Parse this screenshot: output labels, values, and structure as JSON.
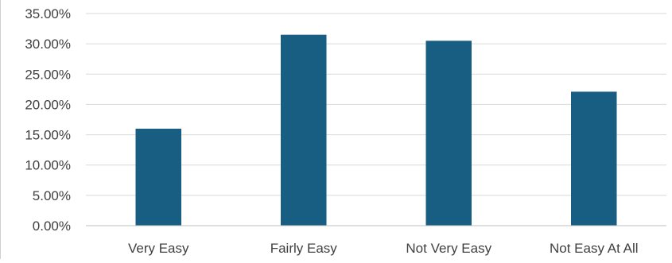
{
  "chart_data": {
    "type": "bar",
    "title": "",
    "xlabel": "",
    "ylabel": "",
    "categories": [
      "Very Easy",
      "Fairly Easy",
      "Not Very Easy",
      "Not Easy At All"
    ],
    "values": [
      0.16,
      0.315,
      0.305,
      0.221
    ],
    "ylim": [
      0,
      0.35
    ],
    "y_tick_labels": [
      "0.00%",
      "5.00%",
      "10.00%",
      "15.00%",
      "20.00%",
      "25.00%",
      "30.00%",
      "35.00%"
    ],
    "grid": true,
    "legend": "none",
    "colors": {
      "bar": "#175E82",
      "gridline": "#D9D9D9",
      "axis": "#BFBFBF",
      "text": "#404040"
    }
  }
}
